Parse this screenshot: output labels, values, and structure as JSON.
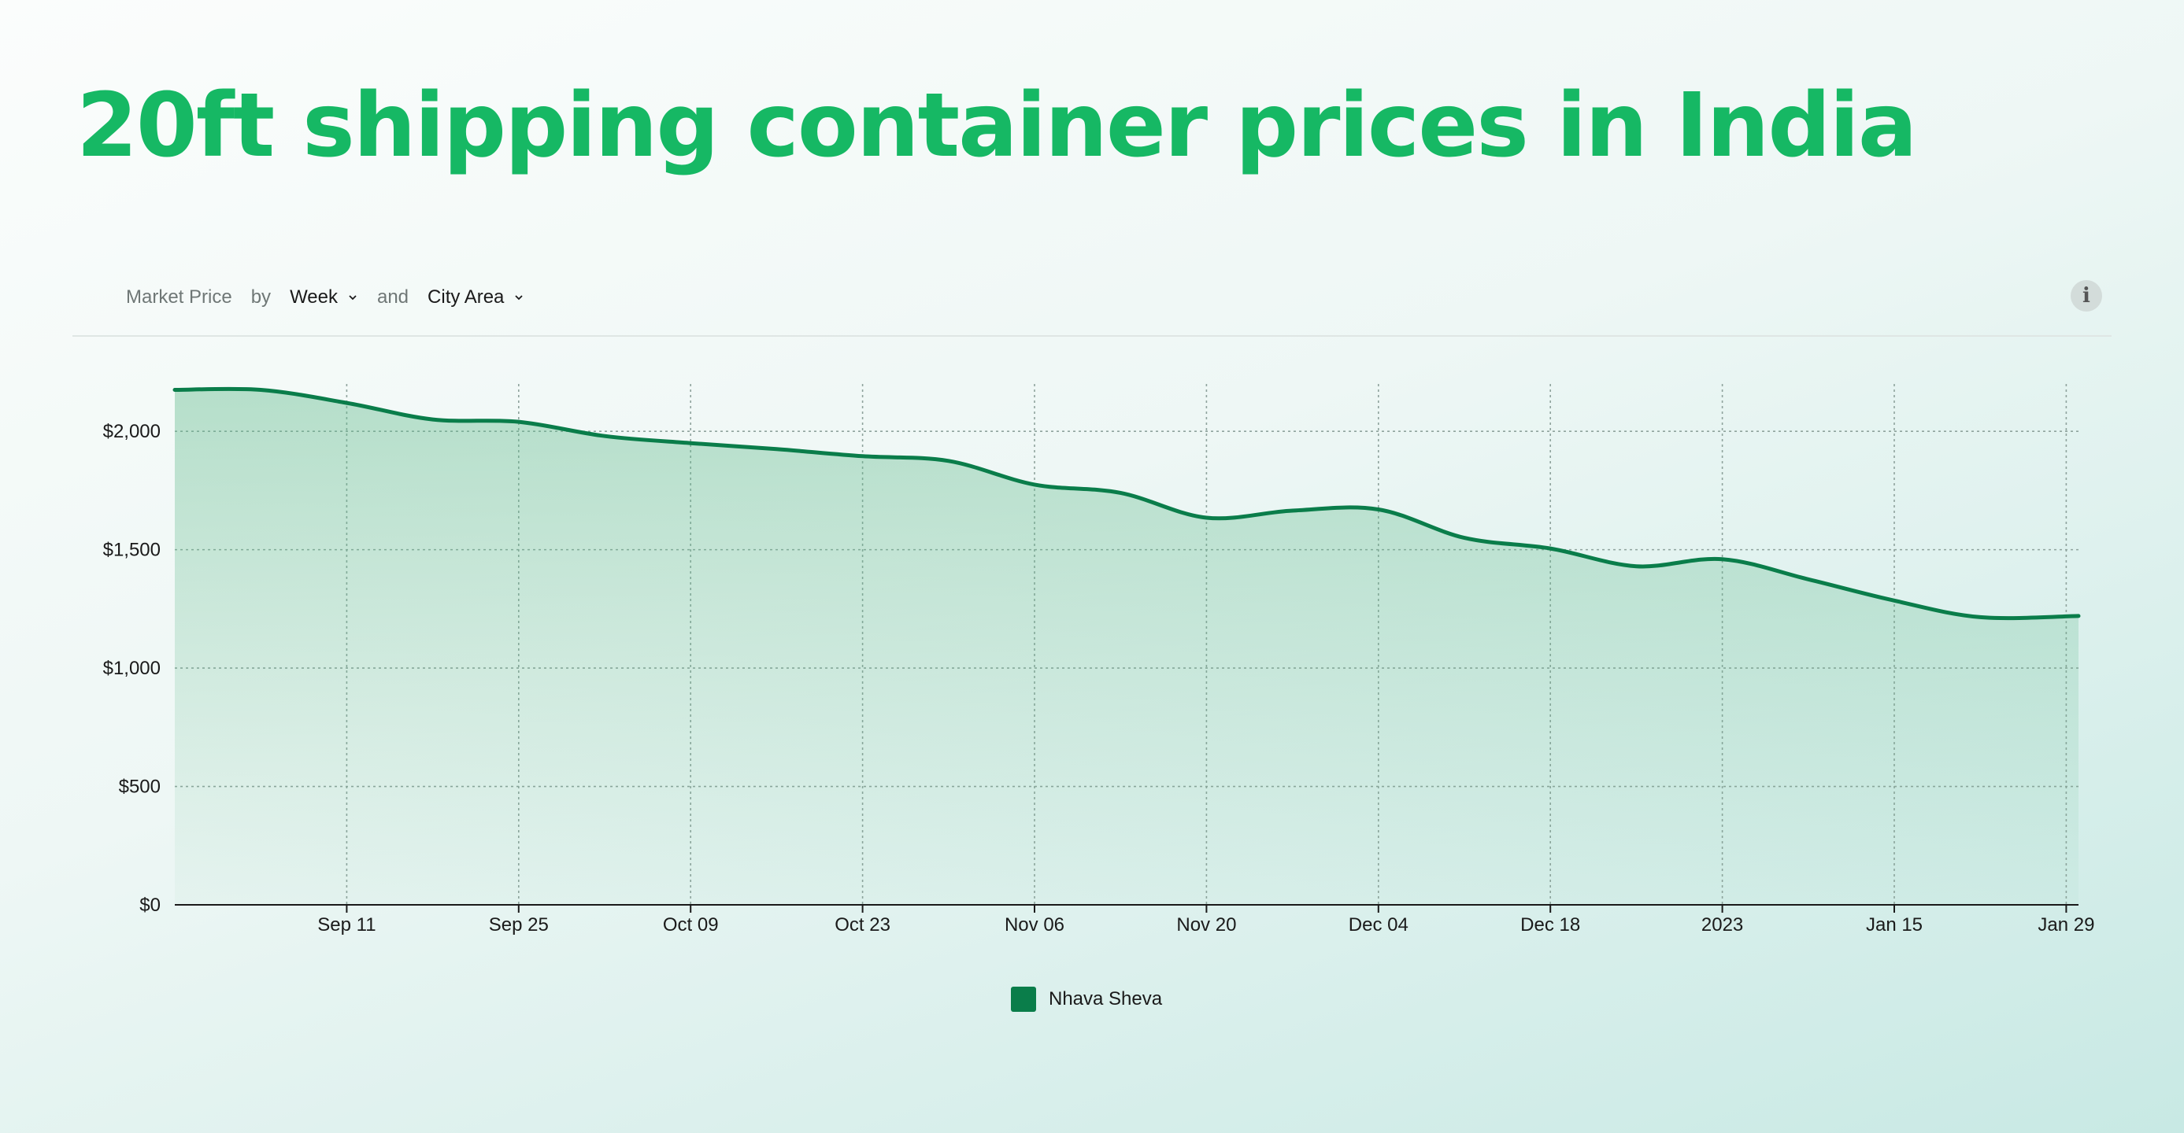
{
  "page": {
    "title": "20ft shipping container prices in India"
  },
  "controls": {
    "metric_label": "Market Price",
    "by_label": "by",
    "period_value": "Week",
    "and_label": "and",
    "group_value": "City Area",
    "info_label": "i"
  },
  "colors": {
    "title": "#16b864",
    "series_line": "#0a7d4a",
    "area_fill": "#5fb98a",
    "grid": "#8fa39d"
  },
  "icons": {
    "dropdown": "chevron-down-icon",
    "info": "info-icon"
  },
  "chart_data": {
    "type": "area",
    "title": "",
    "xlabel": "",
    "ylabel": "",
    "ylim": [
      0,
      2200
    ],
    "xlim": [
      "2022-08-28",
      "2023-01-30"
    ],
    "grid": true,
    "legend_position": "bottom-center",
    "yticks": [
      {
        "value": 0,
        "label": "$0"
      },
      {
        "value": 500,
        "label": "$500"
      },
      {
        "value": 1000,
        "label": "$1,000"
      },
      {
        "value": 1500,
        "label": "$1,500"
      },
      {
        "value": 2000,
        "label": "$2,000"
      }
    ],
    "xticks": [
      {
        "date": "2022-09-11",
        "label": "Sep 11"
      },
      {
        "date": "2022-09-25",
        "label": "Sep 25"
      },
      {
        "date": "2022-10-09",
        "label": "Oct 09"
      },
      {
        "date": "2022-10-23",
        "label": "Oct 23"
      },
      {
        "date": "2022-11-06",
        "label": "Nov 06"
      },
      {
        "date": "2022-11-20",
        "label": "Nov 20"
      },
      {
        "date": "2022-12-04",
        "label": "Dec 04"
      },
      {
        "date": "2022-12-18",
        "label": "Dec 18"
      },
      {
        "date": "2023-01-01",
        "label": "2023"
      },
      {
        "date": "2023-01-15",
        "label": "Jan 15"
      },
      {
        "date": "2023-01-29",
        "label": "Jan 29"
      }
    ],
    "series": [
      {
        "name": "Nhava Sheva",
        "color": "#0a7d4a",
        "points": [
          {
            "x": "2022-08-28",
            "y": 2175
          },
          {
            "x": "2022-09-04",
            "y": 2175
          },
          {
            "x": "2022-09-11",
            "y": 2120
          },
          {
            "x": "2022-09-18",
            "y": 2050
          },
          {
            "x": "2022-09-25",
            "y": 2040
          },
          {
            "x": "2022-10-02",
            "y": 1980
          },
          {
            "x": "2022-10-09",
            "y": 1950
          },
          {
            "x": "2022-10-16",
            "y": 1925
          },
          {
            "x": "2022-10-23",
            "y": 1895
          },
          {
            "x": "2022-10-30",
            "y": 1875
          },
          {
            "x": "2022-11-06",
            "y": 1775
          },
          {
            "x": "2022-11-13",
            "y": 1740
          },
          {
            "x": "2022-11-20",
            "y": 1635
          },
          {
            "x": "2022-11-27",
            "y": 1665
          },
          {
            "x": "2022-12-04",
            "y": 1670
          },
          {
            "x": "2022-12-11",
            "y": 1550
          },
          {
            "x": "2022-12-18",
            "y": 1505
          },
          {
            "x": "2022-12-25",
            "y": 1430
          },
          {
            "x": "2023-01-01",
            "y": 1460
          },
          {
            "x": "2023-01-08",
            "y": 1375
          },
          {
            "x": "2023-01-15",
            "y": 1285
          },
          {
            "x": "2023-01-22",
            "y": 1215
          },
          {
            "x": "2023-01-30",
            "y": 1220
          }
        ]
      }
    ]
  }
}
